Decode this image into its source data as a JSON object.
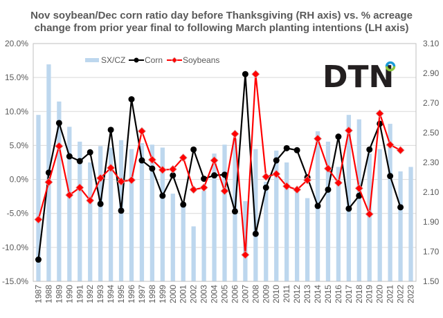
{
  "chart_data": {
    "type": "bar+line",
    "title_lines": [
      "Nov soybean/Dec corn ratio day before Thanksgiving (RH axis)  vs. % acreage",
      "change from prior year final to following March planting intentions (LH axis)"
    ],
    "categories": [
      "1987",
      "1988",
      "1989",
      "1990",
      "1991",
      "1992",
      "1993",
      "1994",
      "1995",
      "1996",
      "1997",
      "1998",
      "1999",
      "2000",
      "2001",
      "2002",
      "2003",
      "2004",
      "2005",
      "2006",
      "2007",
      "2008",
      "2009",
      "2010",
      "2011",
      "2012",
      "2013",
      "2014",
      "2015",
      "2016",
      "2017",
      "2018",
      "2019",
      "2020",
      "2021",
      "2022",
      "2023"
    ],
    "left_axis": {
      "min": -15,
      "max": 20,
      "step": 5,
      "tick_labels": [
        "-15.0%",
        "-10.0%",
        "-5.0%",
        "0.0%",
        "5.0%",
        "10.0%",
        "15.0%",
        "20.0%"
      ],
      "gridlines": true
    },
    "right_axis": {
      "min": 1.5,
      "max": 3.1,
      "step": 0.2,
      "tick_labels": [
        "1.50",
        "1.70",
        "1.90",
        "2.10",
        "2.30",
        "2.50",
        "2.70",
        "2.90",
        "3.10"
      ]
    },
    "series": [
      {
        "name": "SX/CZ",
        "type": "bar",
        "axis": "right",
        "color": "#bdd7ee",
        "values": [
          2.62,
          2.96,
          2.71,
          2.54,
          2.44,
          2.3,
          2.41,
          2.4,
          2.45,
          2.39,
          2.43,
          2.42,
          2.4,
          2.09,
          2.03,
          1.87,
          2.11,
          2.36,
          2.42,
          2.46,
          2.04,
          2.39,
          2.17,
          2.38,
          2.3,
          2.13,
          2.06,
          2.51,
          2.44,
          2.27,
          2.62,
          2.59,
          2.36,
          2.39,
          2.56,
          2.24,
          2.27
        ]
      },
      {
        "name": "Corn",
        "type": "line",
        "axis": "left",
        "color": "#000000",
        "marker": "circle",
        "values": [
          -11.8,
          1.0,
          8.3,
          3.4,
          2.7,
          4.0,
          -3.6,
          7.3,
          -4.6,
          11.8,
          2.8,
          1.6,
          -2.4,
          0.6,
          -3.7,
          4.4,
          0.1,
          0.6,
          0.7,
          -4.7,
          15.5,
          -8.0,
          -1.2,
          2.8,
          4.6,
          4.3,
          0.3,
          -3.9,
          -1.5,
          6.3,
          -4.3,
          -2.4,
          4.4,
          8.2,
          0.5,
          -4.1,
          null
        ]
      },
      {
        "name": "Soybeans",
        "type": "line",
        "axis": "left",
        "color": "#ff0000",
        "marker": "diamond",
        "values": [
          -5.9,
          -0.4,
          4.9,
          -2.3,
          -1.2,
          -3.1,
          0.2,
          1.7,
          -0.3,
          -0.1,
          7.1,
          2.9,
          1.4,
          1.5,
          3.2,
          -1.5,
          -1.2,
          2.8,
          -1.7,
          6.7,
          -11.1,
          15.5,
          0.4,
          0.8,
          -1.0,
          -1.5,
          -0.1,
          6.0,
          1.6,
          -0.5,
          7.2,
          -1.3,
          -5.1,
          9.7,
          5.1,
          4.3,
          null
        ]
      }
    ],
    "legend": {
      "placement": "top-left",
      "items": [
        {
          "label": "SX/CZ",
          "color": "#bdd7ee"
        },
        {
          "label": "Corn",
          "color": "#000000"
        },
        {
          "label": "Soybeans",
          "color": "#ff0000"
        }
      ]
    },
    "xlabel": "",
    "ylabel": ""
  },
  "logo": {
    "text": "DTN",
    "ring_top_color": "#1a9ad6",
    "ring_bottom_color": "#8dc63f"
  }
}
